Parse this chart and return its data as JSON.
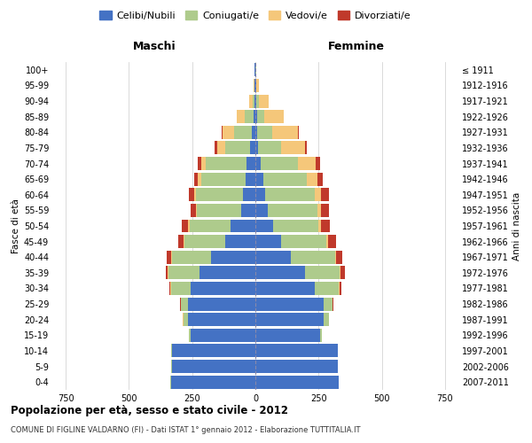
{
  "age_groups": [
    "0-4",
    "5-9",
    "10-14",
    "15-19",
    "20-24",
    "25-29",
    "30-34",
    "35-39",
    "40-44",
    "45-49",
    "50-54",
    "55-59",
    "60-64",
    "65-69",
    "70-74",
    "75-79",
    "80-84",
    "85-89",
    "90-94",
    "95-99",
    "100+"
  ],
  "birth_years": [
    "2007-2011",
    "2002-2006",
    "1997-2001",
    "1992-1996",
    "1987-1991",
    "1982-1986",
    "1977-1981",
    "1972-1976",
    "1967-1971",
    "1962-1966",
    "1957-1961",
    "1952-1956",
    "1947-1951",
    "1942-1946",
    "1937-1941",
    "1932-1936",
    "1927-1931",
    "1922-1926",
    "1917-1921",
    "1912-1916",
    "≤ 1911"
  ],
  "maschi": {
    "celibi": [
      335,
      330,
      330,
      255,
      265,
      265,
      255,
      220,
      175,
      120,
      100,
      55,
      50,
      40,
      35,
      20,
      15,
      8,
      3,
      2,
      2
    ],
    "coniugati": [
      1,
      2,
      3,
      8,
      20,
      30,
      80,
      125,
      155,
      160,
      160,
      175,
      185,
      175,
      160,
      100,
      70,
      35,
      8,
      3,
      1
    ],
    "vedovi": [
      0,
      0,
      0,
      0,
      1,
      1,
      1,
      1,
      2,
      4,
      5,
      5,
      8,
      12,
      20,
      30,
      45,
      30,
      12,
      2,
      1
    ],
    "divorziati": [
      0,
      0,
      0,
      0,
      1,
      2,
      5,
      10,
      18,
      20,
      25,
      20,
      20,
      15,
      12,
      10,
      4,
      2,
      0,
      0,
      0
    ]
  },
  "femmine": {
    "nubili": [
      330,
      325,
      325,
      255,
      270,
      270,
      235,
      195,
      140,
      100,
      70,
      50,
      40,
      30,
      20,
      10,
      8,
      6,
      3,
      2,
      1
    ],
    "coniugate": [
      1,
      2,
      3,
      8,
      20,
      35,
      95,
      140,
      175,
      180,
      180,
      195,
      195,
      175,
      150,
      90,
      60,
      30,
      10,
      3,
      1
    ],
    "vedove": [
      0,
      0,
      0,
      0,
      1,
      1,
      2,
      3,
      5,
      8,
      10,
      15,
      25,
      40,
      70,
      95,
      100,
      75,
      40,
      8,
      2
    ],
    "divorziate": [
      0,
      0,
      0,
      0,
      1,
      3,
      8,
      15,
      25,
      30,
      35,
      30,
      30,
      20,
      15,
      10,
      5,
      3,
      1,
      0,
      0
    ]
  },
  "colors": {
    "celibi_nubili": "#4472C4",
    "coniugati": "#AECB8C",
    "vedovi": "#F5C77A",
    "divorziati": "#C0392B"
  },
  "xlim": 800,
  "title": "Popolazione per età, sesso e stato civile - 2012",
  "subtitle": "COMUNE DI FIGLINE VALDARNO (FI) - Dati ISTAT 1° gennaio 2012 - Elaborazione TUTTITALIA.IT",
  "ylabel_left": "Fasce di età",
  "ylabel_right": "Anni di nascita",
  "xlabel_maschi": "Maschi",
  "xlabel_femmine": "Femmine",
  "legend_labels": [
    "Celibi/Nubili",
    "Coniugati/e",
    "Vedovi/e",
    "Divorziati/e"
  ],
  "bg_color": "#FFFFFF",
  "grid_color": "#CCCCCC"
}
